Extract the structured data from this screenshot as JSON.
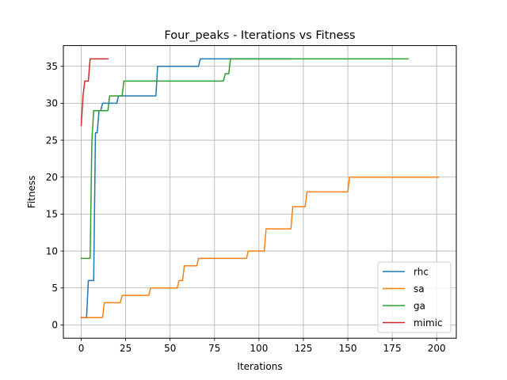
{
  "chart_data": {
    "type": "line",
    "title": "Four_peaks - Iterations vs Fitness",
    "xlabel": "Iterations",
    "ylabel": "Fitness",
    "xlim": [
      -10.05,
      211.05
    ],
    "ylim": [
      -1.8,
      37.8
    ],
    "xticks": [
      0,
      25,
      50,
      75,
      100,
      125,
      150,
      175,
      200
    ],
    "yticks": [
      0,
      5,
      10,
      15,
      20,
      25,
      30,
      35
    ],
    "grid": true,
    "legend_position": "lower-right",
    "series": [
      {
        "name": "rhc",
        "color": "#1f77b4",
        "points": [
          [
            0,
            1
          ],
          [
            1,
            1
          ],
          [
            2,
            1
          ],
          [
            3,
            1
          ],
          [
            4,
            6
          ],
          [
            5,
            6
          ],
          [
            6,
            6
          ],
          [
            7,
            6
          ],
          [
            8,
            26
          ],
          [
            9,
            26
          ],
          [
            10,
            29
          ],
          [
            11,
            29
          ],
          [
            12,
            30
          ],
          [
            13,
            30
          ],
          [
            14,
            30
          ],
          [
            15,
            30
          ],
          [
            16,
            30
          ],
          [
            17,
            30
          ],
          [
            18,
            30
          ],
          [
            19,
            30
          ],
          [
            20,
            30
          ],
          [
            21,
            31
          ],
          [
            22,
            31
          ],
          [
            23,
            31
          ],
          [
            30,
            31
          ],
          [
            40,
            31
          ],
          [
            42,
            31
          ],
          [
            43,
            35
          ],
          [
            50,
            35
          ],
          [
            60,
            35
          ],
          [
            66,
            35
          ],
          [
            67,
            36
          ],
          [
            80,
            36
          ],
          [
            100,
            36
          ],
          [
            118,
            36
          ]
        ]
      },
      {
        "name": "sa",
        "color": "#ff7f0e",
        "points": [
          [
            0,
            1
          ],
          [
            5,
            1
          ],
          [
            10,
            1
          ],
          [
            12,
            1
          ],
          [
            13,
            3
          ],
          [
            20,
            3
          ],
          [
            22,
            3
          ],
          [
            23,
            4
          ],
          [
            30,
            4
          ],
          [
            38,
            4
          ],
          [
            39,
            5
          ],
          [
            45,
            5
          ],
          [
            54,
            5
          ],
          [
            55,
            6
          ],
          [
            57,
            6
          ],
          [
            58,
            8
          ],
          [
            62,
            8
          ],
          [
            65,
            8
          ],
          [
            66,
            9
          ],
          [
            75,
            9
          ],
          [
            85,
            9
          ],
          [
            93,
            9
          ],
          [
            94,
            10
          ],
          [
            100,
            10
          ],
          [
            103,
            10
          ],
          [
            104,
            13
          ],
          [
            110,
            13
          ],
          [
            118,
            13
          ],
          [
            119,
            16
          ],
          [
            124,
            16
          ],
          [
            126,
            16
          ],
          [
            127,
            18
          ],
          [
            135,
            18
          ],
          [
            145,
            18
          ],
          [
            150,
            18
          ],
          [
            151,
            20
          ],
          [
            160,
            20
          ],
          [
            175,
            20
          ],
          [
            190,
            20
          ],
          [
            201,
            20
          ]
        ]
      },
      {
        "name": "ga",
        "color": "#2ca02c",
        "points": [
          [
            0,
            9
          ],
          [
            1,
            9
          ],
          [
            2,
            9
          ],
          [
            3,
            9
          ],
          [
            4,
            9
          ],
          [
            5,
            9
          ],
          [
            6,
            25
          ],
          [
            7,
            29
          ],
          [
            8,
            29
          ],
          [
            9,
            29
          ],
          [
            10,
            29
          ],
          [
            11,
            29
          ],
          [
            12,
            29
          ],
          [
            13,
            29
          ],
          [
            14,
            29
          ],
          [
            15,
            29
          ],
          [
            16,
            31
          ],
          [
            17,
            31
          ],
          [
            18,
            31
          ],
          [
            19,
            31
          ],
          [
            20,
            31
          ],
          [
            21,
            31
          ],
          [
            22,
            31
          ],
          [
            23,
            31
          ],
          [
            24,
            33
          ],
          [
            30,
            33
          ],
          [
            40,
            33
          ],
          [
            50,
            33
          ],
          [
            60,
            33
          ],
          [
            70,
            33
          ],
          [
            80,
            33
          ],
          [
            81,
            34
          ],
          [
            82,
            34
          ],
          [
            83,
            34
          ],
          [
            84,
            36
          ],
          [
            90,
            36
          ],
          [
            100,
            36
          ],
          [
            120,
            36
          ],
          [
            140,
            36
          ],
          [
            160,
            36
          ],
          [
            184,
            36
          ]
        ]
      },
      {
        "name": "mimic",
        "color": "#d62728",
        "points": [
          [
            0,
            27
          ],
          [
            1,
            31
          ],
          [
            2,
            33
          ],
          [
            3,
            33
          ],
          [
            4,
            33
          ],
          [
            5,
            36
          ],
          [
            6,
            36
          ],
          [
            7,
            36
          ],
          [
            8,
            36
          ],
          [
            9,
            36
          ],
          [
            10,
            36
          ],
          [
            11,
            36
          ],
          [
            12,
            36
          ],
          [
            13,
            36
          ],
          [
            14,
            36
          ],
          [
            15,
            36
          ]
        ]
      }
    ]
  }
}
